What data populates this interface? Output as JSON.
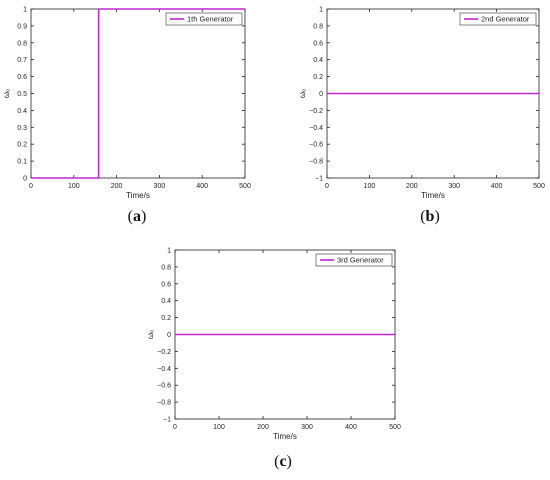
{
  "chart_data": [
    {
      "type": "line",
      "panel_label": "a",
      "xlabel": "Time/s",
      "ylabel": "ωₒ",
      "xlim": [
        0,
        500
      ],
      "ylim": [
        0,
        1
      ],
      "xticks": [
        "0",
        "100",
        "200",
        "300",
        "400",
        "500"
      ],
      "yticks": [
        "0",
        "0.1",
        "0.2",
        "0.3",
        "0.4",
        "0.5",
        "0.6",
        "0.7",
        "0.8",
        "0.9",
        "1"
      ],
      "legend_position": "top-right",
      "grid": false,
      "series": [
        {
          "name": "1th Generator",
          "color": "#c026d3",
          "x": [
            0,
            158,
            158,
            500
          ],
          "y": [
            0,
            0,
            1,
            1
          ]
        }
      ]
    },
    {
      "type": "line",
      "panel_label": "b",
      "xlabel": "Time/s",
      "ylabel": "ωₒ",
      "xlim": [
        0,
        500
      ],
      "ylim": [
        -1,
        1
      ],
      "xticks": [
        "0",
        "100",
        "200",
        "300",
        "400",
        "500"
      ],
      "yticks": [
        "−1",
        "−0.8",
        "−0.6",
        "−0.4",
        "−0.2",
        "0",
        "0.2",
        "0.4",
        "0.6",
        "0.8",
        "1"
      ],
      "legend_position": "top-right",
      "grid": false,
      "series": [
        {
          "name": "2nd Generator",
          "color": "#c026d3",
          "x": [
            0,
            500
          ],
          "y": [
            0,
            0
          ]
        }
      ]
    },
    {
      "type": "line",
      "panel_label": "c",
      "xlabel": "Time/s",
      "ylabel": "ωₒ",
      "xlim": [
        0,
        500
      ],
      "ylim": [
        -1,
        1
      ],
      "xticks": [
        "0",
        "100",
        "200",
        "300",
        "400",
        "500"
      ],
      "yticks": [
        "−1",
        "−0.8",
        "−0.6",
        "−0.4",
        "−0.2",
        "0",
        "0.2",
        "0.4",
        "0.6",
        "0.8",
        "1"
      ],
      "legend_position": "top-right",
      "grid": false,
      "series": [
        {
          "name": "3rd Generator",
          "color": "#c026d3",
          "x": [
            0,
            500
          ],
          "y": [
            0,
            0
          ]
        }
      ]
    }
  ]
}
